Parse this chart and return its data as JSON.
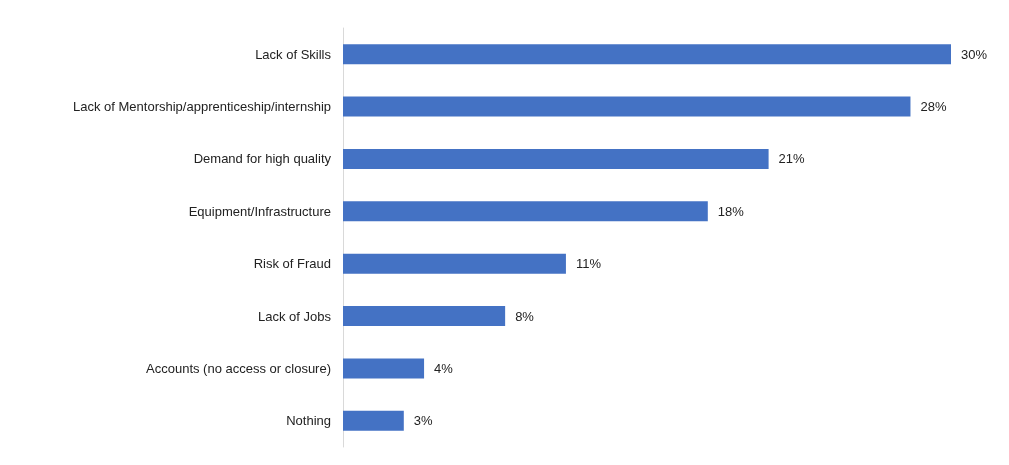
{
  "chart_data": {
    "type": "bar",
    "orientation": "horizontal",
    "categories": [
      "Lack of Skills",
      "Lack of Mentorship/apprenticeship/internship",
      "Demand for high quality",
      "Equipment/Infrastructure",
      "Risk of Fraud",
      "Lack of Jobs",
      "Accounts (no access or closure)",
      "Nothing"
    ],
    "values": [
      30,
      28,
      21,
      18,
      11,
      8,
      4,
      3
    ],
    "value_labels": [
      "30%",
      "28%",
      "21%",
      "18%",
      "11%",
      "8%",
      "4%",
      "3%"
    ],
    "color": "#4472c4"
  }
}
